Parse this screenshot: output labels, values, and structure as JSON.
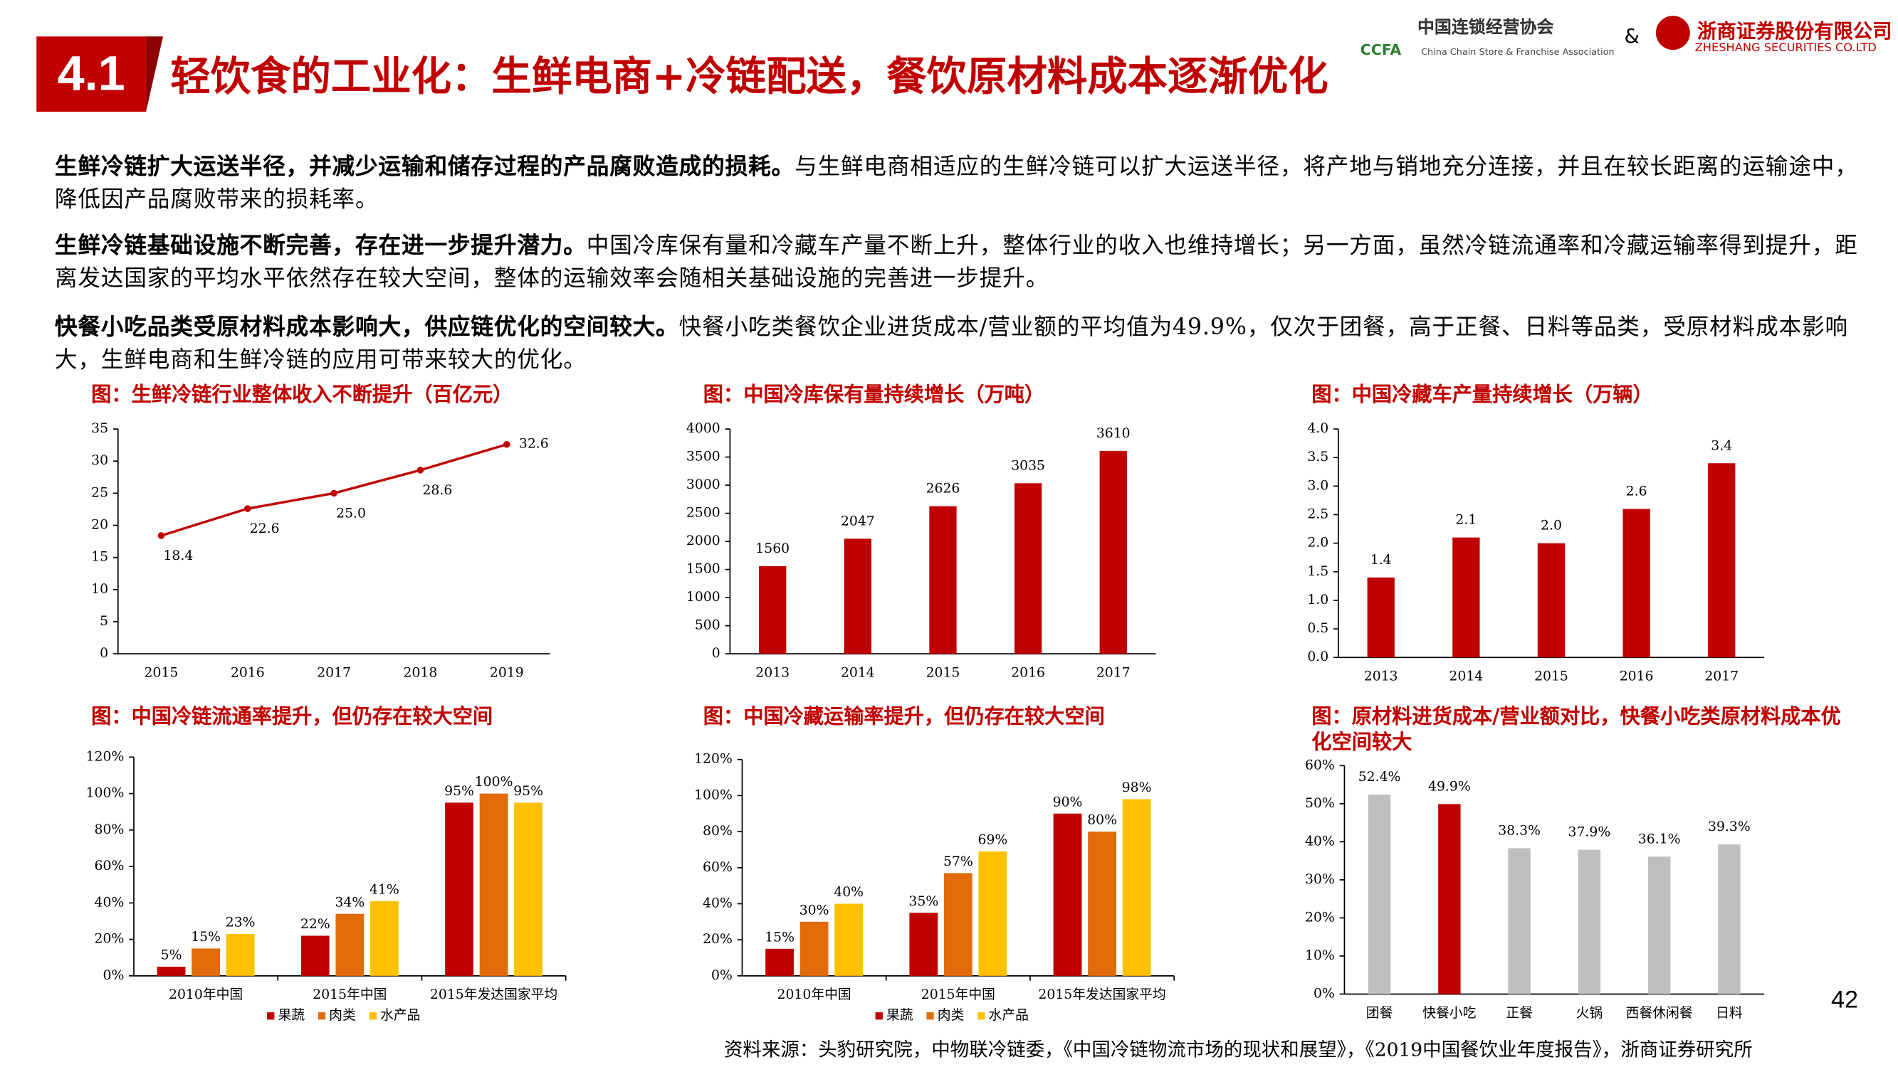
{
  "header": {
    "section": "4.1",
    "title": "轻饮食的工业化：生鲜电商+冷链配送，餐饮原材料成本逐渐优化",
    "logo1_cn": "中国连锁经营协会",
    "logo1_abbr": "CCFA",
    "logo1_en": "China Chain Store & Franchise Association",
    "amp": "&",
    "logo2_cn": "浙商证券股份有限公司",
    "logo2_en": "ZHESHANG SECURITIES CO.LTD"
  },
  "paragraphs": [
    {
      "bold": "生鲜冷链扩大运送半径，并减少运输和储存过程的产品腐败造成的损耗。",
      "text": "与生鲜电商相适应的生鲜冷链可以扩大运送半径，将产地与销地充分连接，并且在较长距离的运输途中，降低因产品腐败带来的损耗率。"
    },
    {
      "bold": "生鲜冷链基础设施不断完善，存在进一步提升潜力。",
      "text": "中国冷库保有量和冷藏车产量不断上升，整体行业的收入也维持增长；另一方面，虽然冷链流通率和冷藏运输率得到提升，距离发达国家的平均水平依然存在较大空间，整体的运输效率会随相关基础设施的完善进一步提升。"
    },
    {
      "bold": "快餐小吃品类受原材料成本影响大，供应链优化的空间较大。",
      "text": "快餐小吃类餐饮企业进货成本/营业额的平均值为49.9%，仅次于团餐，高于正餐、日料等品类，受原材料成本影响大，生鲜电商和生鲜冷链的应用可带来较大的优化。"
    }
  ],
  "chart_data": [
    {
      "type": "line",
      "title": "图：生鲜冷链行业整体收入不断提升（百亿元）",
      "categories": [
        "2015",
        "2016",
        "2017",
        "2018",
        "2019"
      ],
      "values": [
        18.4,
        22.6,
        25.0,
        28.6,
        32.6
      ],
      "value_labels": [
        "18.4",
        "22.6",
        "25.0",
        "28.6",
        "32.6"
      ],
      "color": "#c00000",
      "ylim": [
        0,
        35
      ],
      "yticks": [
        0,
        5,
        10,
        15,
        20,
        25,
        30,
        35
      ]
    },
    {
      "type": "bar",
      "title": "图：中国冷库保有量持续增长（万吨）",
      "categories": [
        "2013",
        "2014",
        "2015",
        "2016",
        "2017"
      ],
      "values": [
        1560,
        2047,
        2626,
        3035,
        3610
      ],
      "color": "#c00000",
      "ylim": [
        0,
        4000
      ],
      "yticks": [
        0,
        500,
        1000,
        1500,
        2000,
        2500,
        3000,
        3500,
        4000
      ]
    },
    {
      "type": "bar",
      "title": "图：中国冷藏车产量持续增长（万辆）",
      "categories": [
        "2013",
        "2014",
        "2015",
        "2016",
        "2017"
      ],
      "values": [
        1.4,
        2.1,
        2.0,
        2.6,
        3.4
      ],
      "value_labels": [
        "1.4",
        "2.1",
        "2.0",
        "2.6",
        "3.4"
      ],
      "color": "#c00000",
      "ylim": [
        0,
        4
      ],
      "yticks": [
        {
          "value": 0,
          "label": "0.0"
        },
        {
          "value": 0.5,
          "label": "0.5"
        },
        {
          "value": 1,
          "label": "1.0"
        },
        {
          "value": 1.5,
          "label": "1.5"
        },
        {
          "value": 2,
          "label": "2.0"
        },
        {
          "value": 2.5,
          "label": "2.5"
        },
        {
          "value": 3,
          "label": "3.0"
        },
        {
          "value": 3.5,
          "label": "3.5"
        },
        {
          "value": 4,
          "label": "4.0"
        }
      ]
    },
    {
      "type": "bar",
      "title": "图：中国冷链流通率提升，但仍存在较大空间",
      "categories": [
        "2010年中国",
        "2015年中国",
        "2015年发达国家平均"
      ],
      "series": [
        {
          "name": "果蔬",
          "color": "#c00000",
          "values": [
            5,
            22,
            95
          ],
          "value_labels": [
            "5%",
            "22%",
            "95%"
          ]
        },
        {
          "name": "肉类",
          "color": "#e36c0a",
          "values": [
            15,
            34,
            100
          ],
          "value_labels": [
            "15%",
            "34%",
            "100%"
          ]
        },
        {
          "name": "水产品",
          "color": "#ffc000",
          "values": [
            23,
            41,
            95
          ],
          "value_labels": [
            "23%",
            "41%",
            "95%"
          ]
        }
      ],
      "ylim": [
        0,
        120
      ],
      "yticks": [
        {
          "value": 0,
          "label": "0%"
        },
        {
          "value": 20,
          "label": "20%"
        },
        {
          "value": 40,
          "label": "40%"
        },
        {
          "value": 60,
          "label": "60%"
        },
        {
          "value": 80,
          "label": "80%"
        },
        {
          "value": 100,
          "label": "100%"
        },
        {
          "value": 120,
          "label": "120%"
        }
      ]
    },
    {
      "type": "bar",
      "title": "图：中国冷藏运输率提升，但仍存在较大空间",
      "categories": [
        "2010年中国",
        "2015年中国",
        "2015年发达国家平均"
      ],
      "series": [
        {
          "name": "果蔬",
          "color": "#c00000",
          "values": [
            15,
            35,
            90
          ],
          "value_labels": [
            "15%",
            "35%",
            "90%"
          ]
        },
        {
          "name": "肉类",
          "color": "#e36c0a",
          "values": [
            30,
            57,
            80
          ],
          "value_labels": [
            "30%",
            "57%",
            "80%"
          ]
        },
        {
          "name": "水产品",
          "color": "#ffc000",
          "values": [
            40,
            69,
            98
          ],
          "value_labels": [
            "40%",
            "69%",
            "98%"
          ]
        }
      ],
      "ylim": [
        0,
        120
      ],
      "yticks": [
        {
          "value": 0,
          "label": "0%"
        },
        {
          "value": 20,
          "label": "20%"
        },
        {
          "value": 40,
          "label": "40%"
        },
        {
          "value": 60,
          "label": "60%"
        },
        {
          "value": 80,
          "label": "80%"
        },
        {
          "value": 100,
          "label": "100%"
        },
        {
          "value": 120,
          "label": "120%"
        }
      ]
    },
    {
      "type": "bar",
      "title": "图：原材料进货成本/营业额对比，快餐小吃类原材料成本优化空间较大",
      "categories": [
        "团餐",
        "快餐小吃",
        "正餐",
        "火锅",
        "西餐休闲餐",
        "日料"
      ],
      "values": [
        52.4,
        49.9,
        38.3,
        37.9,
        36.1,
        39.3
      ],
      "value_labels": [
        "52.4%",
        "49.9%",
        "38.3%",
        "37.9%",
        "36.1%",
        "39.3%"
      ],
      "colors": [
        "#bfbfbf",
        "#c00000",
        "#bfbfbf",
        "#bfbfbf",
        "#bfbfbf",
        "#bfbfbf"
      ],
      "ylim": [
        0,
        60
      ],
      "yticks": [
        {
          "value": 0,
          "label": "0%"
        },
        {
          "value": 10,
          "label": "10%"
        },
        {
          "value": 20,
          "label": "20%"
        },
        {
          "value": 30,
          "label": "30%"
        },
        {
          "value": 40,
          "label": "40%"
        },
        {
          "value": 50,
          "label": "50%"
        },
        {
          "value": 60,
          "label": "60%"
        }
      ]
    }
  ],
  "page_number": "42",
  "source": "资料来源：头豹研究院，中物联冷链委，《中国冷链物流市场的现状和展望》，《2019中国餐饮业年度报告》，浙商证券研究所"
}
